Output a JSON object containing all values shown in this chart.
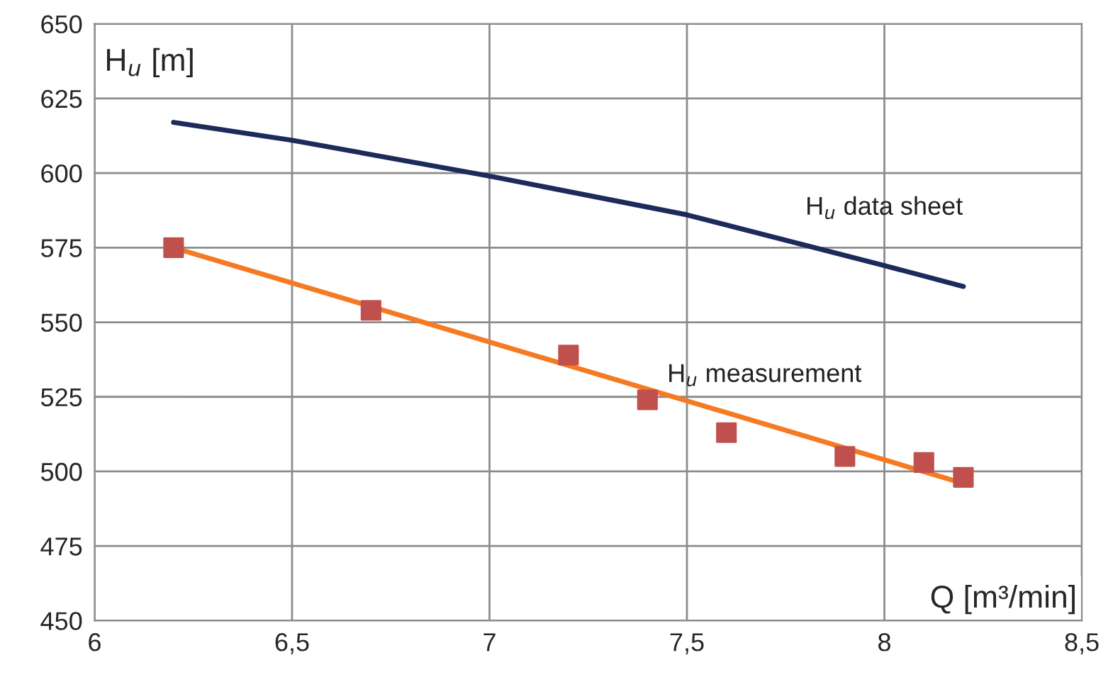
{
  "chart_data": {
    "type": "line",
    "xlabel": "Q [m³/min]",
    "ylabel": "H$_{u}$ [m]",
    "series": [
      {
        "name": "H$_{u}$ data sheet",
        "type": "line",
        "color": "#1c2b5a",
        "x": [
          6.2,
          6.5,
          7.0,
          7.5,
          8.0,
          8.2
        ],
        "values": [
          617,
          611,
          599,
          586,
          569,
          562
        ]
      },
      {
        "name": "H$_{u}$ measurement",
        "type": "scatter",
        "marker": "square",
        "color": "#c0504d",
        "x": [
          6.2,
          6.7,
          7.2,
          7.4,
          7.6,
          7.9,
          8.1,
          8.2
        ],
        "values": [
          575,
          554,
          539,
          524,
          513,
          505,
          503,
          498
        ]
      },
      {
        "color": "#f57a22",
        "x": [
          6.2,
          8.2
        ],
        "values": [
          575,
          496
        ]
      }
    ],
    "xlim": [
      6,
      8.5
    ],
    "xticks": [
      6,
      {
        "value": 6.5,
        "label": "6,5"
      },
      7,
      {
        "value": 7.5,
        "label": "7,5"
      },
      8,
      {
        "value": 8.5,
        "label": "8,5"
      }
    ],
    "ylim": [
      450,
      650
    ],
    "yticks": [
      450,
      475,
      500,
      525,
      550,
      575,
      600,
      625,
      650
    ],
    "grid": true,
    "legend": false
  }
}
